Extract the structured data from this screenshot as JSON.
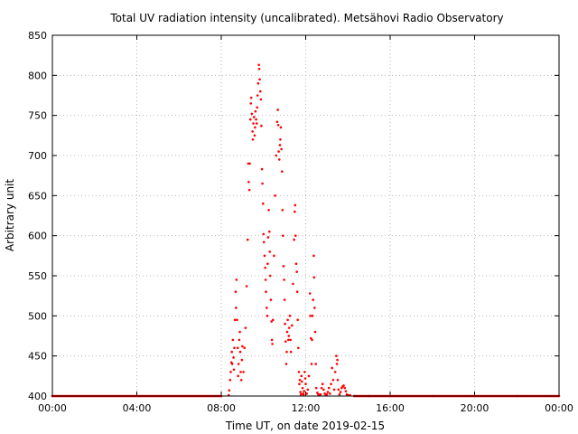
{
  "chart_data": {
    "type": "scatter",
    "title": "Total UV radiation intensity (uncalibrated). Metsähovi Radio Observatory",
    "xlabel": "Time UT, on date 2019-02-15",
    "ylabel": "Arbitrary unit",
    "xlim": [
      "00:00",
      "24:00"
    ],
    "ylim": [
      400,
      850
    ],
    "x_ticks": [
      "00:00",
      "04:00",
      "08:00",
      "12:00",
      "16:00",
      "20:00",
      "00:00"
    ],
    "y_ticks": [
      "400",
      "450",
      "500",
      "550",
      "600",
      "650",
      "700",
      "750",
      "800",
      "850"
    ],
    "grid": true,
    "legend": "none",
    "point_color": "#ff0000",
    "series": [
      {
        "x_unit": "hours UT",
        "points": [
          [
            0.0,
            400
          ],
          [
            8.0,
            400
          ],
          [
            8.35,
            401
          ],
          [
            8.38,
            407
          ],
          [
            8.42,
            420
          ],
          [
            8.45,
            430
          ],
          [
            8.48,
            442
          ],
          [
            8.5,
            455
          ],
          [
            8.52,
            440
          ],
          [
            8.55,
            470
          ],
          [
            8.58,
            448
          ],
          [
            8.6,
            433
          ],
          [
            8.62,
            460
          ],
          [
            8.65,
            495
          ],
          [
            8.68,
            530
          ],
          [
            8.7,
            510
          ],
          [
            8.72,
            545
          ],
          [
            8.75,
            495
          ],
          [
            8.78,
            460
          ],
          [
            8.8,
            425
          ],
          [
            8.82,
            440
          ],
          [
            8.85,
            470
          ],
          [
            8.88,
            480
          ],
          [
            8.9,
            455
          ],
          [
            8.92,
            430
          ],
          [
            8.95,
            420
          ],
          [
            8.98,
            445
          ],
          [
            9.0,
            462
          ],
          [
            9.05,
            430
          ],
          [
            9.1,
            460
          ],
          [
            9.15,
            485
          ],
          [
            9.2,
            537
          ],
          [
            9.25,
            595
          ],
          [
            9.28,
            690
          ],
          [
            9.3,
            667
          ],
          [
            9.33,
            657
          ],
          [
            9.35,
            690
          ],
          [
            9.38,
            745
          ],
          [
            9.4,
            765
          ],
          [
            9.42,
            772
          ],
          [
            9.45,
            752
          ],
          [
            9.48,
            730
          ],
          [
            9.5,
            720
          ],
          [
            9.52,
            740
          ],
          [
            9.55,
            748
          ],
          [
            9.58,
            725
          ],
          [
            9.6,
            735
          ],
          [
            9.62,
            755
          ],
          [
            9.65,
            745
          ],
          [
            9.68,
            740
          ],
          [
            9.7,
            760
          ],
          [
            9.72,
            775
          ],
          [
            9.75,
            790
          ],
          [
            9.78,
            813
          ],
          [
            9.8,
            808
          ],
          [
            9.82,
            795
          ],
          [
            9.85,
            780
          ],
          [
            9.88,
            770
          ],
          [
            9.9,
            737
          ],
          [
            9.93,
            683
          ],
          [
            9.95,
            665
          ],
          [
            9.98,
            640
          ],
          [
            10.0,
            602
          ],
          [
            10.02,
            592
          ],
          [
            10.05,
            575
          ],
          [
            10.08,
            560
          ],
          [
            10.1,
            545
          ],
          [
            10.12,
            530
          ],
          [
            10.15,
            510
          ],
          [
            10.18,
            500
          ],
          [
            10.2,
            565
          ],
          [
            10.22,
            598
          ],
          [
            10.25,
            632
          ],
          [
            10.28,
            605
          ],
          [
            10.3,
            580
          ],
          [
            10.32,
            550
          ],
          [
            10.35,
            520
          ],
          [
            10.38,
            493
          ],
          [
            10.4,
            470
          ],
          [
            10.42,
            465
          ],
          [
            10.45,
            495
          ],
          [
            10.5,
            575
          ],
          [
            10.55,
            650
          ],
          [
            10.6,
            700
          ],
          [
            10.65,
            742
          ],
          [
            10.68,
            757
          ],
          [
            10.7,
            738
          ],
          [
            10.72,
            705
          ],
          [
            10.75,
            695
          ],
          [
            10.78,
            713
          ],
          [
            10.8,
            720
          ],
          [
            10.82,
            735
          ],
          [
            10.85,
            708
          ],
          [
            10.88,
            680
          ],
          [
            10.9,
            632
          ],
          [
            10.92,
            600
          ],
          [
            10.95,
            562
          ],
          [
            10.98,
            545
          ],
          [
            11.0,
            520
          ],
          [
            11.02,
            490
          ],
          [
            11.05,
            468
          ],
          [
            11.08,
            440
          ],
          [
            11.1,
            455
          ],
          [
            11.12,
            480
          ],
          [
            11.15,
            495
          ],
          [
            11.18,
            470
          ],
          [
            11.2,
            475
          ],
          [
            11.22,
            485
          ],
          [
            11.25,
            500
          ],
          [
            11.28,
            470
          ],
          [
            11.3,
            455
          ],
          [
            11.35,
            488
          ],
          [
            11.4,
            540
          ],
          [
            11.45,
            595
          ],
          [
            11.48,
            630
          ],
          [
            11.5,
            638
          ],
          [
            11.52,
            600
          ],
          [
            11.55,
            565
          ],
          [
            11.58,
            555
          ],
          [
            11.6,
            530
          ],
          [
            11.62,
            495
          ],
          [
            11.65,
            460
          ],
          [
            11.68,
            430
          ],
          [
            11.7,
            415
          ],
          [
            11.72,
            420
          ],
          [
            11.75,
            405
          ],
          [
            11.78,
            402
          ],
          [
            11.8,
            425
          ],
          [
            11.82,
            418
          ],
          [
            11.85,
            410
          ],
          [
            11.88,
            403
          ],
          [
            11.9,
            402
          ],
          [
            11.92,
            406
          ],
          [
            11.95,
            430
          ],
          [
            11.98,
            422
          ],
          [
            12.0,
            415
          ],
          [
            12.05,
            403
          ],
          [
            12.1,
            408
          ],
          [
            12.15,
            425
          ],
          [
            12.2,
            528
          ],
          [
            12.22,
            500
          ],
          [
            12.25,
            472
          ],
          [
            12.28,
            440
          ],
          [
            12.3,
            470
          ],
          [
            12.32,
            500
          ],
          [
            12.35,
            520
          ],
          [
            12.38,
            575
          ],
          [
            12.4,
            548
          ],
          [
            12.42,
            510
          ],
          [
            12.45,
            480
          ],
          [
            12.48,
            440
          ],
          [
            12.5,
            410
          ],
          [
            12.55,
            404
          ],
          [
            12.6,
            402
          ],
          [
            12.65,
            401
          ],
          [
            12.7,
            402
          ],
          [
            12.75,
            410
          ],
          [
            12.8,
            415
          ],
          [
            12.85,
            408
          ],
          [
            12.9,
            403
          ],
          [
            12.95,
            401
          ],
          [
            13.0,
            402
          ],
          [
            13.05,
            405
          ],
          [
            13.1,
            410
          ],
          [
            13.15,
            403
          ],
          [
            13.2,
            415
          ],
          [
            13.25,
            435
          ],
          [
            13.3,
            420
          ],
          [
            13.35,
            408
          ],
          [
            13.4,
            430
          ],
          [
            13.45,
            450
          ],
          [
            13.48,
            440
          ],
          [
            13.5,
            445
          ],
          [
            13.52,
            420
          ],
          [
            13.55,
            408
          ],
          [
            13.6,
            402
          ],
          [
            13.65,
            405
          ],
          [
            13.7,
            410
          ],
          [
            13.75,
            412
          ],
          [
            13.8,
            413
          ],
          [
            13.85,
            410
          ],
          [
            13.9,
            406
          ],
          [
            13.95,
            402
          ],
          [
            14.0,
            401
          ],
          [
            14.1,
            401
          ],
          [
            14.3,
            400
          ],
          [
            15.0,
            400
          ],
          [
            16.0,
            400
          ],
          [
            18.0,
            400
          ],
          [
            20.0,
            400
          ],
          [
            22.0,
            400
          ],
          [
            24.0,
            400
          ]
        ]
      }
    ]
  }
}
